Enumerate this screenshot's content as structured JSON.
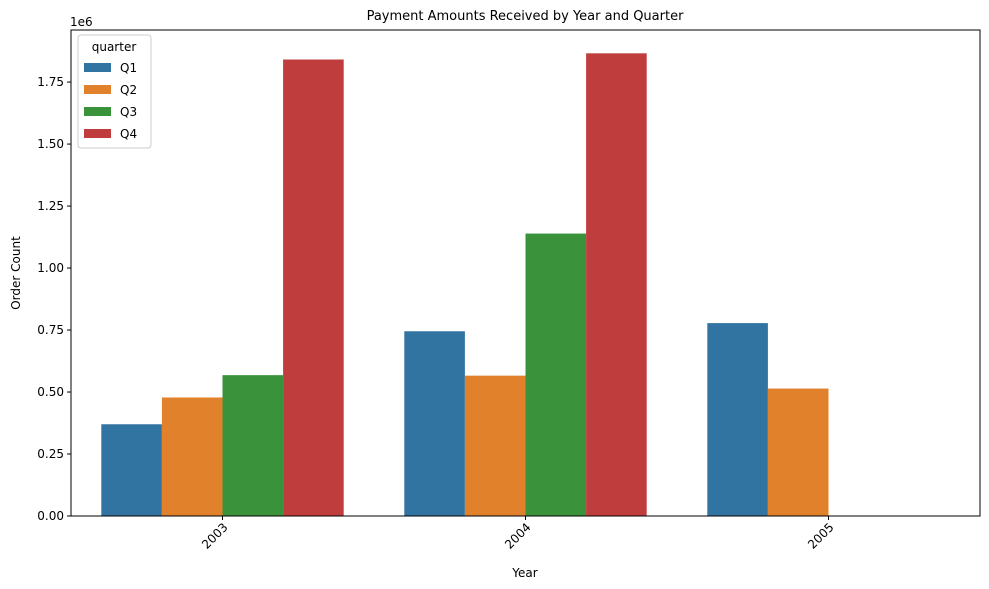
{
  "chart_data": {
    "type": "bar",
    "title": "Payment Amounts Received by Year and Quarter",
    "xlabel": "Year",
    "ylabel": "Order Count",
    "y_offset_text": "1e6",
    "categories": [
      "2003",
      "2004",
      "2005"
    ],
    "ylim": [
      0,
      1960000
    ],
    "yticks": [
      0,
      250000,
      500000,
      750000,
      1000000,
      1250000,
      1500000,
      1750000
    ],
    "ytick_labels": [
      "0.00",
      "0.25",
      "0.50",
      "0.75",
      "1.00",
      "1.25",
      "1.50",
      "1.75"
    ],
    "legend": {
      "title": "quarter",
      "position": "top-left"
    },
    "grid": false,
    "series": [
      {
        "name": "Q1",
        "color": "#3274a1",
        "values": [
          370000,
          745000,
          778000
        ]
      },
      {
        "name": "Q2",
        "color": "#e1812c",
        "values": [
          478000,
          566000,
          514000
        ]
      },
      {
        "name": "Q3",
        "color": "#3a923a",
        "values": [
          568000,
          1139000,
          null
        ]
      },
      {
        "name": "Q4",
        "color": "#c03d3e",
        "values": [
          1841000,
          1866000,
          null
        ]
      }
    ]
  }
}
